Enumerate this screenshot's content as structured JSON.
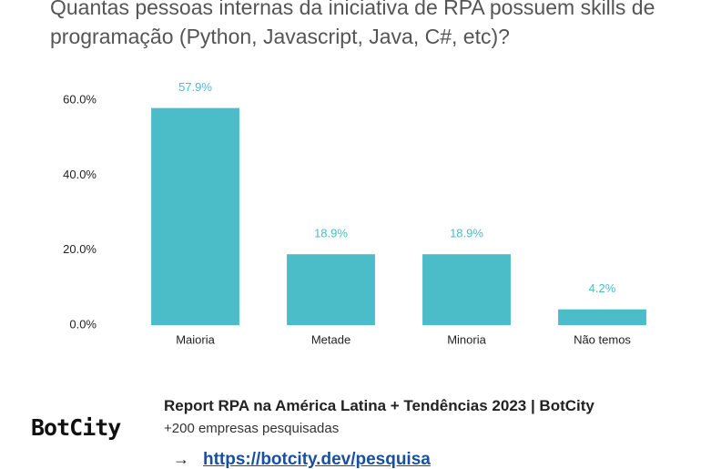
{
  "chart_data": {
    "type": "bar",
    "title": "Quantas pessoas internas da iniciativa de RPA possuem skills de programação (Python, Javascript, Java, C#, etc)?",
    "categories": [
      "Maioria",
      "Metade",
      "Minoria",
      "Não temos"
    ],
    "values": [
      57.9,
      18.9,
      18.9,
      4.2
    ],
    "value_labels": [
      "57.9%",
      "18.9%",
      "18.9%",
      "4.2%"
    ],
    "color": "#4abdc8",
    "ylim": [
      0,
      60
    ],
    "yticks": [
      {
        "value": 0,
        "label": "0.0%"
      },
      {
        "value": 20,
        "label": "20.0%"
      },
      {
        "value": 40,
        "label": "40.0%"
      },
      {
        "value": 60,
        "label": "60.0%"
      }
    ],
    "grid": false
  },
  "footer": {
    "logo": "BotCity",
    "title": "Report RPA na América Latina + Tendências 2023 | BotCity",
    "subtitle": "+200 empresas pesquisadas",
    "arrow": "→",
    "link": "https://botcity.dev/pesquisa"
  }
}
